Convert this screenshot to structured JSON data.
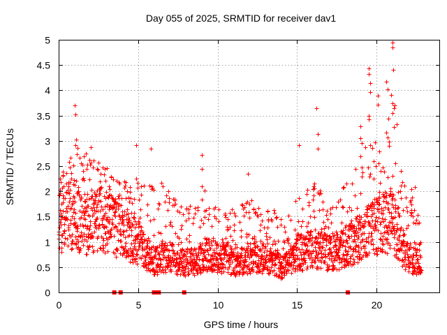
{
  "chart_data": {
    "type": "scatter",
    "title": "Day 055 of 2025, SRMTID for receiver dav1",
    "xlabel": "GPS time / hours",
    "ylabel": "SRMTID / TECUs",
    "xlim": [
      0,
      24
    ],
    "ylim": [
      0,
      5
    ],
    "x_ticks": [
      "0",
      "5",
      "10",
      "15",
      "20"
    ],
    "y_ticks": [
      "0",
      "0.5",
      "1",
      "1.5",
      "2",
      "2.5",
      "3",
      "3.5",
      "4",
      "4.5",
      "5"
    ],
    "grid": true,
    "series": [
      {
        "name": "SRMTID",
        "marker": "+",
        "color": "#ff0000",
        "profile_hours": [
          0,
          0.5,
          1,
          1.5,
          2,
          2.5,
          3,
          3.5,
          4,
          4.5,
          5,
          5.5,
          6,
          6.5,
          7,
          7.5,
          8,
          8.5,
          9,
          9.5,
          10,
          10.5,
          11,
          11.5,
          12,
          12.5,
          13,
          13.5,
          14,
          14.5,
          15,
          15.5,
          16,
          16.5,
          17,
          17.5,
          18,
          18.5,
          19,
          19.5,
          20,
          20.5,
          21,
          21.5,
          22,
          22.5,
          22.8
        ],
        "profile_typical": [
          1.4,
          1.5,
          1.6,
          1.3,
          1.4,
          1.5,
          1.4,
          1.3,
          1.2,
          1.1,
          1.0,
          0.8,
          0.6,
          0.7,
          0.7,
          0.6,
          0.6,
          0.6,
          0.7,
          0.8,
          0.7,
          0.7,
          0.6,
          0.6,
          0.7,
          0.7,
          0.7,
          0.6,
          0.5,
          0.6,
          0.8,
          0.8,
          0.9,
          0.8,
          0.8,
          0.8,
          0.9,
          1.0,
          1.1,
          1.2,
          1.3,
          1.4,
          1.4,
          1.0,
          0.7,
          0.6,
          0.7
        ],
        "profile_upper": [
          2.3,
          2.5,
          3.0,
          2.8,
          2.8,
          2.6,
          2.5,
          2.3,
          2.2,
          2.3,
          2.4,
          2.2,
          2.1,
          2.3,
          2.0,
          1.8,
          1.7,
          1.8,
          2.2,
          1.8,
          1.7,
          1.6,
          1.8,
          1.8,
          1.9,
          1.7,
          1.6,
          1.7,
          1.5,
          1.6,
          1.9,
          2.0,
          2.3,
          2.0,
          1.9,
          1.8,
          2.2,
          2.4,
          3.0,
          3.5,
          3.2,
          3.0,
          4.2,
          2.6,
          2.0,
          1.8,
          1.4
        ],
        "peak_points": [
          [
            1.0,
            3.7
          ],
          [
            1.05,
            3.52
          ],
          [
            1.1,
            3.03
          ],
          [
            2.0,
            2.87
          ],
          [
            4.9,
            2.92
          ],
          [
            5.8,
            2.85
          ],
          [
            9.0,
            2.72
          ],
          [
            9.0,
            2.44
          ],
          [
            11.9,
            2.35
          ],
          [
            15.1,
            2.92
          ],
          [
            16.2,
            3.65
          ],
          [
            16.3,
            3.13
          ],
          [
            16.3,
            2.84
          ],
          [
            19.0,
            3.29
          ],
          [
            19.0,
            3.05
          ],
          [
            19.5,
            4.44
          ],
          [
            19.5,
            4.32
          ],
          [
            19.6,
            4.15
          ],
          [
            19.6,
            3.97
          ],
          [
            19.5,
            3.49
          ],
          [
            20.1,
            3.9
          ],
          [
            20.1,
            3.71
          ],
          [
            20.6,
            4.17
          ],
          [
            20.7,
            4.02
          ],
          [
            20.6,
            3.16
          ],
          [
            20.7,
            3.07
          ],
          [
            20.8,
            2.98
          ],
          [
            21.0,
            4.95
          ],
          [
            21.0,
            4.85
          ],
          [
            21.05,
            4.4
          ],
          [
            21.0,
            3.75
          ],
          [
            21.1,
            3.65
          ],
          [
            21.0,
            3.55
          ],
          [
            22.2,
            2.05
          ],
          [
            22.4,
            2.09
          ],
          [
            22.7,
            1.38
          ]
        ]
      }
    ],
    "no_data_hours": [
      3.5,
      3.9,
      6.0,
      6.15,
      6.3,
      7.9,
      18.2
    ]
  }
}
